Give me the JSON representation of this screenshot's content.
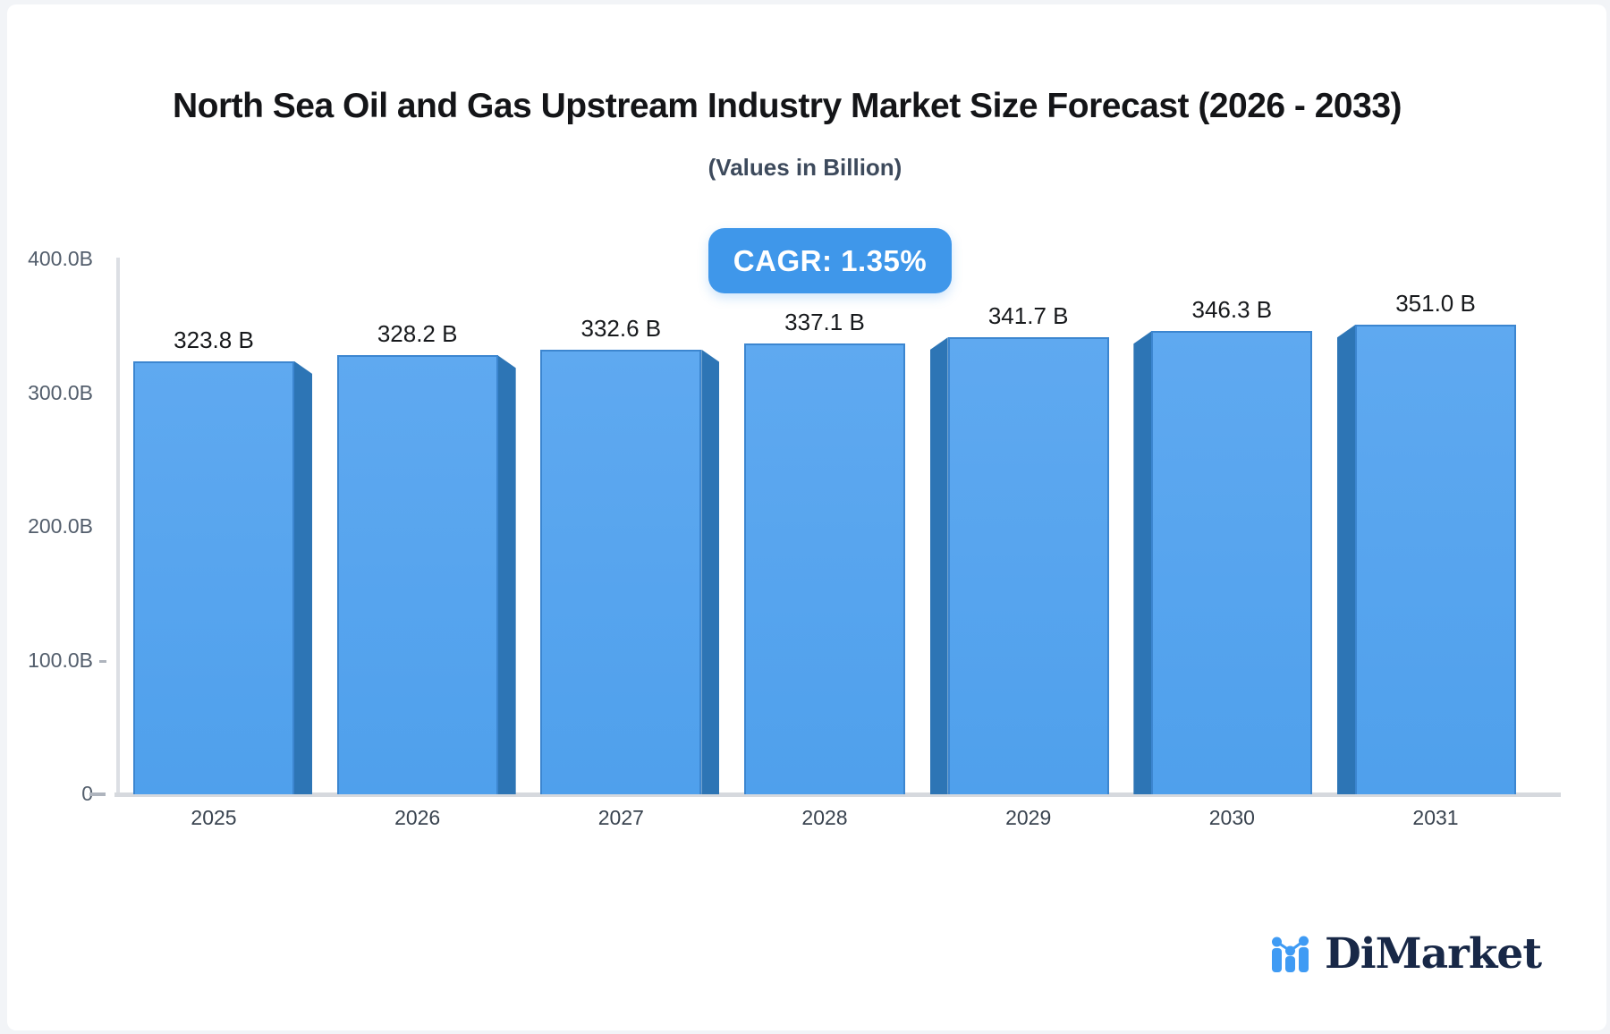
{
  "chart_data": {
    "type": "bar",
    "title": "North Sea Oil and Gas Upstream Industry Market Size Forecast (2026 - 2033)",
    "subtitle": "(Values in Billion)",
    "annotation": "CAGR: 1.35%",
    "categories": [
      "2025",
      "2026",
      "2027",
      "2028",
      "2029",
      "2030",
      "2031"
    ],
    "values": [
      323.8,
      328.2,
      332.6,
      337.1,
      341.7,
      346.3,
      351.0
    ],
    "value_labels": [
      "323.8 B",
      "328.2 B",
      "332.6 B",
      "337.1 B",
      "341.7 B",
      "346.3 B",
      "351.0 B"
    ],
    "xlabel": "",
    "ylabel": "",
    "ylim": [
      0,
      400
    ],
    "grid": false,
    "legend": "none",
    "y_axis": [
      {
        "label": "400.0B",
        "value": 400,
        "tick": "none"
      },
      {
        "label": "300.0B",
        "value": 300,
        "tick": "none"
      },
      {
        "label": "200.0B",
        "value": 200,
        "tick": "none"
      },
      {
        "label": "100.0B",
        "value": 100,
        "tick": "short"
      },
      {
        "label": "0",
        "value": 0,
        "tick": "long"
      }
    ],
    "colors": {
      "bar_face_top": "#5fa9f0",
      "bar_face_bottom": "#4fa0ec",
      "bar_side": "#2d75b5",
      "bar_border": "#3c86d0",
      "badge_bg": "#3f97ea",
      "badge_text": "#ffffff"
    }
  },
  "branding": {
    "logo_text": "DiMarket",
    "logo_icon": "mini-bar-chart-icon",
    "logo_text_color": "#182847",
    "logo_icon_color": "#3f9bf4"
  }
}
